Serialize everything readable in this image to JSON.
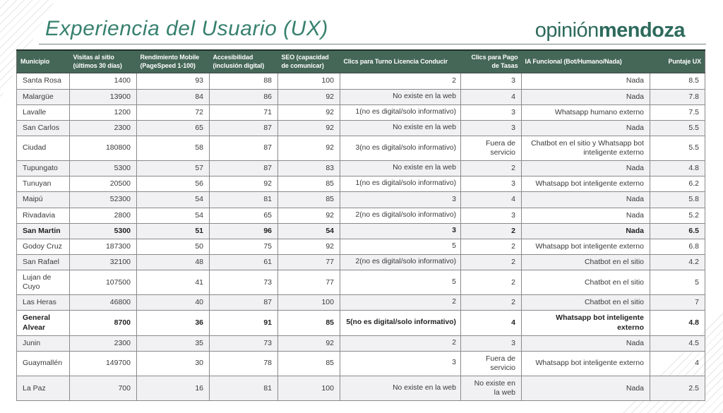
{
  "slide": {
    "title": "Experiencia del Usuario (UX)",
    "logo_regular": "opinión",
    "logo_bold": "mendoza"
  },
  "colors": {
    "header_bg": "#456757",
    "title_green": "#37816e",
    "logo_green": "#2d6a5c",
    "row_alt": "#f1f1f3",
    "border": "#8a8a8a"
  },
  "table": {
    "columns": [
      "Municipio",
      "Visitas al sitio (últimos 30 días)",
      "Rendimiento Mobile (PageSpeed 1-100)",
      "Accesibilidad (inclusión digital)",
      "SEO (capacidad de comunicar)",
      "Clics para Turno Licencia Conducir",
      "Clics para Pago de Tasas",
      "IA Funcional (Bot/Humano/Nada)",
      "Puntaje UX"
    ],
    "rows": [
      {
        "bold": false,
        "cells": [
          "Santa Rosa",
          "1400",
          "93",
          "88",
          "100",
          "2",
          "3",
          "Nada",
          "8.5"
        ]
      },
      {
        "bold": false,
        "cells": [
          "Malargüe",
          "13900",
          "84",
          "86",
          "92",
          "No existe en la web",
          "4",
          "Nada",
          "7.8"
        ]
      },
      {
        "bold": false,
        "cells": [
          "Lavalle",
          "1200",
          "72",
          "71",
          "92",
          "1(no es digital/solo informativo)",
          "3",
          "Whatsapp humano externo",
          "7.5"
        ]
      },
      {
        "bold": false,
        "cells": [
          "San Carlos",
          "2300",
          "65",
          "87",
          "92",
          "No existe en la web",
          "3",
          "Nada",
          "5.5"
        ]
      },
      {
        "bold": false,
        "cells": [
          "Ciudad",
          "180800",
          "58",
          "87",
          "92",
          "3(no es digital/solo informativo)",
          "Fuera de servicio",
          "Chatbot en el sitio y Whatsapp bot inteligente externo",
          "5.5"
        ]
      },
      {
        "bold": false,
        "cells": [
          "Tupungato",
          "5300",
          "57",
          "87",
          "83",
          "No existe en la web",
          "2",
          "Nada",
          "4.8"
        ]
      },
      {
        "bold": false,
        "cells": [
          "Tunuyan",
          "20500",
          "56",
          "92",
          "85",
          "1(no es digital/solo informativo)",
          "3",
          "Whatsapp bot inteligente externo",
          "6.2"
        ]
      },
      {
        "bold": false,
        "cells": [
          "Maipú",
          "52300",
          "54",
          "81",
          "85",
          "3",
          "4",
          "Nada",
          "5.8"
        ]
      },
      {
        "bold": false,
        "cells": [
          "Rivadavia",
          "2800",
          "54",
          "65",
          "92",
          "2(no es digital/solo informativo)",
          "3",
          "Nada",
          "5.2"
        ]
      },
      {
        "bold": true,
        "cells": [
          "San Martin",
          "5300",
          "51",
          "96",
          "54",
          "3",
          "2",
          "Nada",
          "6.5"
        ]
      },
      {
        "bold": false,
        "cells": [
          "Godoy Cruz",
          "187300",
          "50",
          "75",
          "92",
          "5",
          "2",
          "Whatsapp bot inteligente externo",
          "6.8"
        ]
      },
      {
        "bold": false,
        "cells": [
          "San Rafael",
          "32100",
          "48",
          "61",
          "77",
          "2(no es digital/solo informativo)",
          "2",
          "Chatbot en el sitio",
          "4.2"
        ]
      },
      {
        "bold": false,
        "cells": [
          "Lujan de Cuyo",
          "107500",
          "41",
          "73",
          "77",
          "5",
          "2",
          "Chatbot en el sitio",
          "5"
        ]
      },
      {
        "bold": false,
        "cells": [
          "Las Heras",
          "46800",
          "40",
          "87",
          "100",
          "2",
          "2",
          "Chatbot en el sitio",
          "7"
        ]
      },
      {
        "bold": true,
        "cells": [
          "General Alvear",
          "8700",
          "36",
          "91",
          "85",
          "5(no es digital/solo informativo)",
          "4",
          "Whatsapp bot inteligente externo",
          "4.8"
        ]
      },
      {
        "bold": false,
        "cells": [
          "Junin",
          "2300",
          "35",
          "73",
          "92",
          "2",
          "3",
          "Nada",
          "4.5"
        ]
      },
      {
        "bold": false,
        "cells": [
          "Guaymallén",
          "149700",
          "30",
          "78",
          "85",
          "3",
          "Fuera de servicio",
          "Whatsapp bot inteligente externo",
          "4"
        ]
      },
      {
        "bold": false,
        "cells": [
          "La Paz",
          "700",
          "16",
          "81",
          "100",
          "No existe en la web",
          "No existe en la web",
          "Nada",
          "2.5"
        ]
      }
    ]
  }
}
